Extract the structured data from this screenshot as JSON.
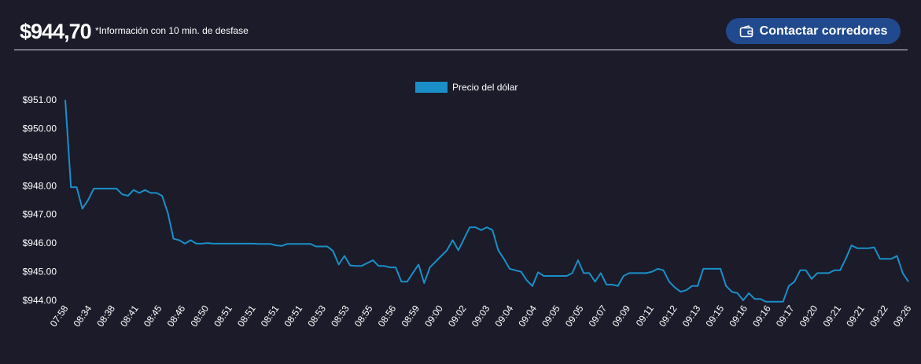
{
  "header": {
    "price": "$944,70",
    "note": "*Información con 10 min. de desfase",
    "cta_label": "Contactar corredores",
    "cta_icon": "wallet-icon"
  },
  "colors": {
    "background": "#1b1b2a",
    "line": "#1a8fc7",
    "button": "#214a8e"
  },
  "chart_data": {
    "type": "line",
    "legend": {
      "label": "Precio del dólar",
      "position": "top-center"
    },
    "ylim": [
      944,
      951
    ],
    "y_ticks": [
      "$951.00",
      "$950.00",
      "$949.00",
      "$948.00",
      "$947.00",
      "$946.00",
      "$945.00",
      "$944.00"
    ],
    "x_tick_labels": [
      "07:58",
      "08:34",
      "08:38",
      "08:41",
      "08:45",
      "08:46",
      "08:50",
      "08:51",
      "08:51",
      "08:51",
      "08:51",
      "08:53",
      "08:53",
      "08:55",
      "08:56",
      "08:59",
      "09:00",
      "09:02",
      "09:03",
      "09:04",
      "09:04",
      "09:05",
      "09:05",
      "09:07",
      "09:09",
      "09:11",
      "09:12",
      "09:13",
      "09:15",
      "09:16",
      "09:16",
      "09:17",
      "09:20",
      "09:21",
      "09:21",
      "09:22",
      "09:26"
    ],
    "series": [
      {
        "name": "Precio del dólar",
        "values": [
          951.0,
          947.95,
          947.95,
          947.2,
          947.5,
          947.9,
          947.9,
          947.9,
          947.9,
          947.9,
          947.7,
          947.65,
          947.85,
          947.75,
          947.85,
          947.75,
          947.75,
          947.65,
          947.05,
          946.15,
          946.1,
          945.98,
          946.1,
          945.98,
          945.98,
          946.0,
          945.98,
          945.98,
          945.98,
          945.98,
          945.98,
          945.98,
          945.98,
          945.98,
          945.97,
          945.97,
          945.97,
          945.92,
          945.9,
          945.97,
          945.97,
          945.97,
          945.97,
          945.97,
          945.88,
          945.88,
          945.88,
          945.72,
          945.25,
          945.55,
          945.22,
          945.2,
          945.2,
          945.3,
          945.4,
          945.2,
          945.2,
          945.15,
          945.15,
          944.65,
          944.65,
          944.95,
          945.25,
          944.6,
          945.15,
          945.35,
          945.55,
          945.75,
          946.1,
          945.75,
          946.15,
          946.55,
          946.55,
          946.45,
          946.55,
          946.45,
          945.75,
          945.45,
          945.1,
          945.05,
          945.0,
          944.7,
          944.5,
          944.98,
          944.85,
          944.85,
          944.85,
          944.85,
          944.85,
          944.95,
          945.4,
          944.95,
          944.95,
          944.65,
          944.95,
          944.55,
          944.55,
          944.5,
          944.85,
          944.95,
          944.95,
          944.95,
          944.95,
          945.0,
          945.1,
          945.05,
          944.65,
          944.45,
          944.3,
          944.35,
          944.5,
          944.5,
          945.1,
          945.1,
          945.1,
          945.1,
          944.5,
          944.3,
          944.25,
          944.0,
          944.25,
          944.05,
          944.05,
          943.95,
          943.95,
          943.95,
          943.95,
          944.5,
          944.65,
          945.05,
          945.05,
          944.75,
          944.95,
          944.95,
          944.95,
          945.05,
          945.05,
          945.45,
          945.92,
          945.82,
          945.82,
          945.82,
          945.85,
          945.45,
          945.45,
          945.45,
          945.55,
          944.95,
          944.65
        ]
      }
    ]
  }
}
